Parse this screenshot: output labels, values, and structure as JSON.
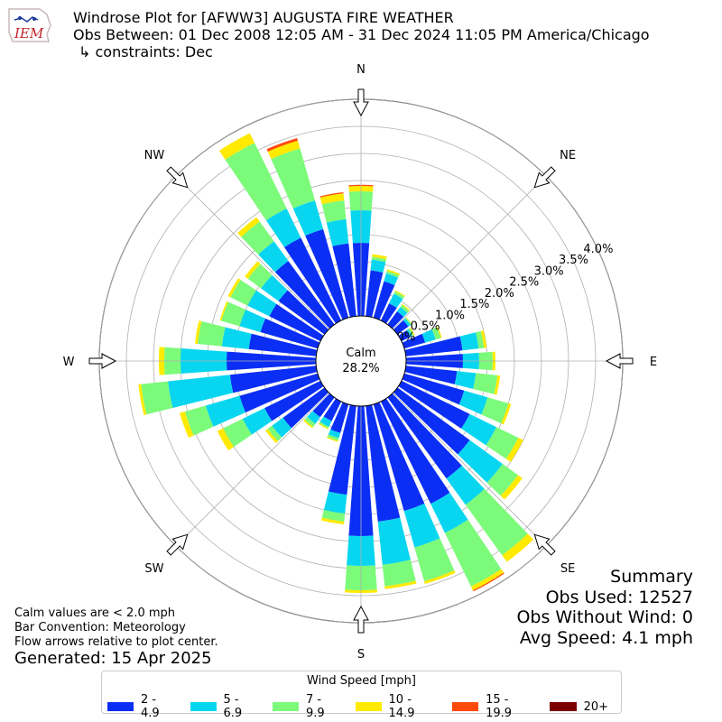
{
  "header": {
    "line1": "Windrose Plot for [AFWW3] AUGUSTA FIRE WEATHER",
    "line2": "Obs Between: 01 Dec 2008 12:05 AM - 31 Dec 2024 11:05 PM America/Chicago",
    "line3": "↳ constraints: Dec",
    "logo_text": "IEM"
  },
  "notes": {
    "line1": "Calm values are < 2.0 mph",
    "line2": "Bar Convention: Meteorology",
    "line3": "Flow arrows relative to plot center.",
    "generated": "Generated: 15 Apr 2025"
  },
  "summary": {
    "title": "Summary",
    "obs_used": "Obs Used: 12527",
    "obs_without_wind": "Obs Without Wind: 0",
    "avg_speed": "Avg Speed: 4.1 mph"
  },
  "chart_data": {
    "type": "windrose",
    "calm_label": "Calm",
    "calm_value": "28.2%",
    "calm_percent": 28.2,
    "radial_unit": "%",
    "radial_ticks": [
      "0.0%",
      "0.5%",
      "1.0%",
      "1.5%",
      "2.0%",
      "2.5%",
      "3.0%",
      "3.5%",
      "4.0%"
    ],
    "radial_tick_values": [
      0.0,
      0.5,
      1.0,
      1.5,
      2.0,
      2.5,
      3.0,
      3.5,
      4.0
    ],
    "directions": [
      {
        "label": "N",
        "angle": 0
      },
      {
        "label": "NE",
        "angle": 45
      },
      {
        "label": "E",
        "angle": 90
      },
      {
        "label": "SE",
        "angle": 135
      },
      {
        "label": "S",
        "angle": 180
      },
      {
        "label": "SW",
        "angle": 225
      },
      {
        "label": "W",
        "angle": 270
      },
      {
        "label": "NW",
        "angle": 315
      }
    ],
    "legend_title": "Wind Speed [mph]",
    "bins": [
      {
        "label": "2 - 4.9",
        "color": "#0b2ef5"
      },
      {
        "label": "5 - 6.9",
        "color": "#08d6f0"
      },
      {
        "label": "7 - 9.9",
        "color": "#7cfa7a"
      },
      {
        "label": "10 - 14.9",
        "color": "#ffea00"
      },
      {
        "label": "15 - 19.9",
        "color": "#ff4a0a"
      },
      {
        "label": "20+",
        "color": "#7a0000"
      }
    ],
    "sector_centers_deg": [
      0,
      10,
      20,
      30,
      40,
      50,
      60,
      70,
      80,
      90,
      100,
      110,
      120,
      130,
      140,
      150,
      160,
      170,
      180,
      190,
      200,
      210,
      220,
      230,
      240,
      250,
      260,
      270,
      280,
      290,
      300,
      310,
      320,
      330,
      340,
      350
    ],
    "cumulative_percent": [
      [
        1.35,
        1.95,
        2.3,
        2.4,
        2.42,
        2.42
      ],
      [
        0.85,
        1.05,
        1.1,
        1.15,
        1.15,
        1.15
      ],
      [
        0.7,
        0.85,
        0.9,
        0.93,
        0.93,
        0.93
      ],
      [
        0.35,
        0.55,
        0.6,
        0.62,
        0.62,
        0.62
      ],
      [
        0.3,
        0.4,
        0.45,
        0.47,
        0.47,
        0.47
      ],
      [
        0.25,
        0.3,
        0.32,
        0.33,
        0.33,
        0.33
      ],
      [
        0.18,
        0.22,
        0.25,
        0.27,
        0.27,
        0.27
      ],
      [
        0.4,
        0.6,
        0.7,
        0.72,
        0.72,
        0.72
      ],
      [
        1.05,
        1.35,
        1.45,
        1.5,
        1.5,
        1.5
      ],
      [
        1.05,
        1.35,
        1.6,
        1.65,
        1.65,
        1.65
      ],
      [
        0.95,
        1.3,
        1.7,
        1.75,
        1.75,
        1.75
      ],
      [
        1.15,
        1.6,
        2.0,
        2.05,
        2.05,
        2.05
      ],
      [
        1.4,
        1.95,
        2.4,
        2.5,
        2.5,
        2.5
      ],
      [
        1.65,
        2.4,
        2.75,
        2.85,
        2.85,
        2.85
      ],
      [
        1.85,
        2.45,
        3.6,
        3.75,
        3.75,
        3.75
      ],
      [
        2.1,
        2.7,
        3.8,
        3.88,
        3.9,
        3.9
      ],
      [
        2.05,
        2.75,
        3.4,
        3.45,
        3.45,
        3.45
      ],
      [
        2.15,
        2.95,
        3.35,
        3.4,
        3.4,
        3.4
      ],
      [
        2.4,
        2.95,
        3.4,
        3.45,
        3.45,
        3.45
      ],
      [
        1.65,
        2.0,
        2.15,
        2.2,
        2.2,
        2.2
      ],
      [
        0.55,
        0.65,
        0.7,
        0.72,
        0.72,
        0.72
      ],
      [
        0.4,
        0.52,
        0.55,
        0.57,
        0.57,
        0.57
      ],
      [
        0.45,
        0.6,
        0.67,
        0.7,
        0.7,
        0.7
      ],
      [
        0.95,
        1.2,
        1.3,
        1.35,
        1.35,
        1.35
      ],
      [
        1.15,
        1.6,
        2.0,
        2.12,
        2.12,
        2.12
      ],
      [
        1.5,
        2.15,
        2.55,
        2.65,
        2.65,
        2.65
      ],
      [
        1.6,
        2.75,
        3.25,
        3.3,
        3.3,
        3.3
      ],
      [
        1.65,
        2.5,
        2.8,
        2.9,
        2.9,
        2.9
      ],
      [
        1.25,
        1.75,
        2.2,
        2.25,
        2.25,
        2.25
      ],
      [
        1.1,
        1.5,
        1.85,
        1.88,
        1.88,
        1.88
      ],
      [
        1.05,
        1.5,
        1.85,
        1.9,
        1.9,
        1.9
      ],
      [
        1.05,
        1.45,
        1.75,
        1.82,
        1.82,
        1.82
      ],
      [
        1.45,
        1.9,
        2.35,
        2.45,
        2.45,
        2.45
      ],
      [
        1.7,
        2.3,
        3.65,
        3.85,
        3.85,
        3.85
      ],
      [
        1.7,
        2.25,
        3.25,
        3.4,
        3.45,
        3.45
      ],
      [
        1.35,
        1.8,
        2.15,
        2.28,
        2.3,
        2.3
      ]
    ]
  }
}
